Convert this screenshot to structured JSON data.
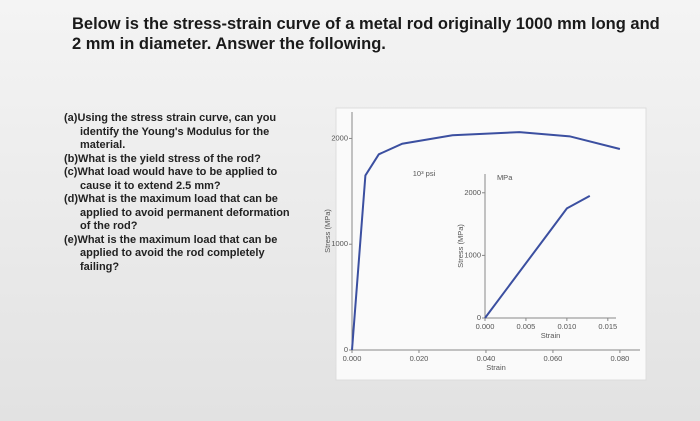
{
  "title": "Below is the stress-strain curve of a metal rod originally 1000 mm long and 2 mm in diameter. Answer the following.",
  "questions": [
    "(a)Using the stress strain curve, can you identify the Young's Modulus for the material.",
    "(b)What is the yield stress of the rod?",
    "(c)What load would have to be applied to cause it to extend 2.5 mm?",
    "(d)What is the maximum load that can be applied to avoid permanent deformation of the rod?",
    "(e)What is the maximum load that can be applied to avoid the rod completely failing?"
  ],
  "chart_data": [
    {
      "type": "line",
      "ylabel": "Stress (MPa)",
      "xlabel": "Strain",
      "annotation": "10³ psi",
      "color": "#3b4fa0",
      "x": [
        0,
        0.004,
        0.008,
        0.015,
        0.03,
        0.05,
        0.065,
        0.08
      ],
      "values": [
        0,
        1650,
        1850,
        1950,
        2030,
        2060,
        2020,
        1900
      ],
      "xlim": [
        0,
        0.086
      ],
      "ylim": [
        0,
        2250
      ],
      "xticks": [
        {
          "value": 0,
          "label": "0.000"
        },
        {
          "value": 0.02,
          "label": "0.020"
        },
        {
          "value": 0.04,
          "label": "0.040"
        },
        {
          "value": 0.06,
          "label": "0.060"
        },
        {
          "value": 0.08,
          "label": "0.080"
        }
      ],
      "yticks": [
        0,
        1000,
        2000
      ]
    },
    {
      "type": "line",
      "ylabel": "Stress (MPa)",
      "xlabel": "Strain",
      "annotation": "MPa",
      "color": "#3b4fa0",
      "x": [
        0,
        0.008,
        0.01,
        0.0128
      ],
      "values": [
        0,
        1400,
        1750,
        1950
      ],
      "xlim": [
        0,
        0.016
      ],
      "ylim": [
        0,
        2300
      ],
      "xticks": [
        {
          "value": 0,
          "label": "0.000"
        },
        {
          "value": 0.005,
          "label": "0.005"
        },
        {
          "value": 0.01,
          "label": "0.010"
        },
        {
          "value": 0.015,
          "label": "0.015"
        }
      ],
      "yticks": [
        0,
        1000,
        2000
      ]
    }
  ]
}
